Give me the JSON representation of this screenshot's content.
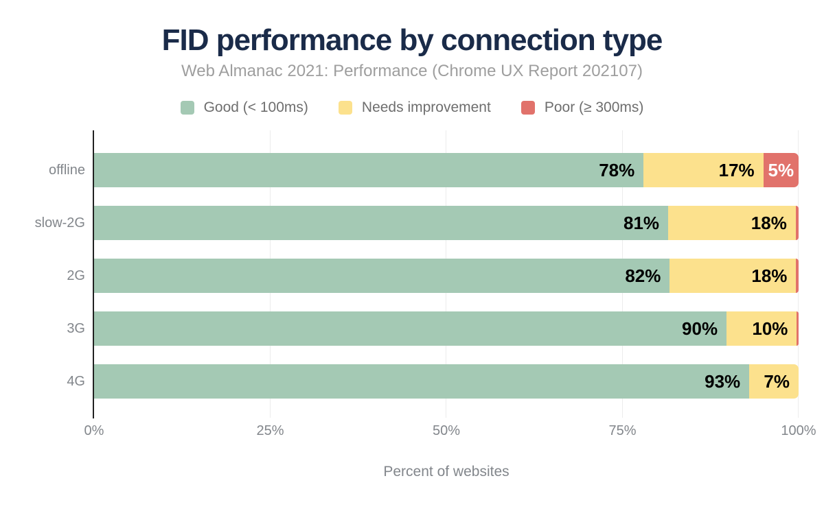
{
  "chart_data": {
    "type": "bar",
    "orientation": "horizontal",
    "stacked": true,
    "title": "FID performance by connection type",
    "subtitle": "Web Almanac 2021: Performance (Chrome UX Report 202107)",
    "categories": [
      "offline",
      "slow-2G",
      "2G",
      "3G",
      "4G"
    ],
    "series": [
      {
        "name": "Good (< 100ms)",
        "color": "#a4c9b4",
        "label_color": "#000000",
        "label_position": "inside-end",
        "values": [
          78,
          81,
          82,
          90,
          93
        ]
      },
      {
        "name": "Needs improvement",
        "color": "#fce18d",
        "label_color": "#000000",
        "label_position": "inside-end",
        "values": [
          17,
          18,
          18,
          10,
          7
        ]
      },
      {
        "name": "Poor (≥ 300ms)",
        "color": "#e1726b",
        "label_color": "#ffffff",
        "label_position": "center",
        "values": [
          5,
          0.4,
          0.35,
          0.25,
          0
        ]
      }
    ],
    "xlabel": "Percent of websites",
    "xlim": [
      0,
      100
    ],
    "x_ticks": [
      {
        "label": "0%",
        "value": 0
      },
      {
        "label": "25%",
        "value": 25
      },
      {
        "label": "50%",
        "value": 50
      },
      {
        "label": "75%",
        "value": 75
      },
      {
        "label": "100%",
        "value": 100
      }
    ],
    "value_label_suffix": "%",
    "min_label_value": 5,
    "legend_position": "top",
    "grid": "vertical",
    "style": {
      "title_color": "#1a2b49",
      "subtitle_color": "#9e9e9e",
      "axis_text_color": "#82868b",
      "legend_text_color": "#6e6e6e",
      "grid_color": "#ececec",
      "axis_line_color": "#212121",
      "background": "#ffffff"
    }
  }
}
